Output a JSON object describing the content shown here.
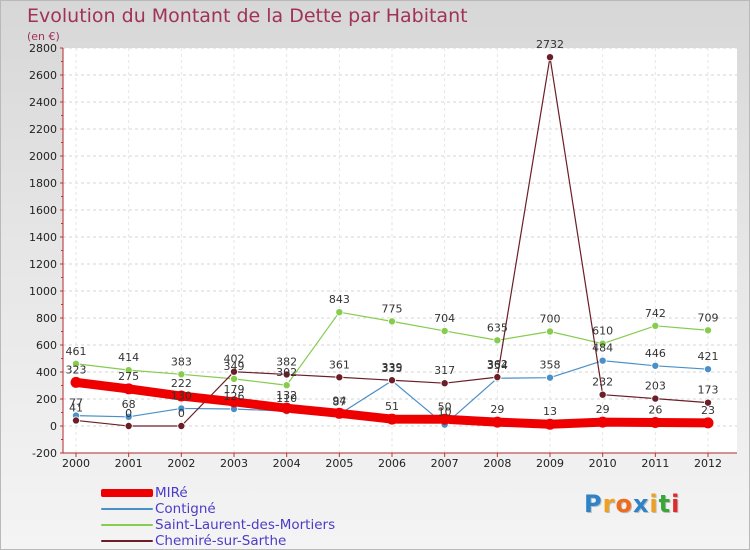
{
  "chart_data": {
    "type": "line",
    "title": "Evolution du Montant de la Dette par Habitant",
    "subtitle": "(en €)",
    "categories": [
      "2000",
      "2001",
      "2002",
      "2003",
      "2004",
      "2005",
      "2006",
      "2007",
      "2008",
      "2009",
      "2010",
      "2011",
      "2012"
    ],
    "ylim": [
      -200,
      2800
    ],
    "yticks": [
      -200,
      0,
      200,
      400,
      600,
      800,
      1000,
      1200,
      1400,
      1600,
      1800,
      2000,
      2200,
      2400,
      2600,
      2800
    ],
    "grid": true,
    "legend_position": "bottom-left",
    "series": [
      {
        "name": "MIRé",
        "color": "#ee0000",
        "values": [
          323,
          275,
          222,
          179,
          132,
          94,
          51,
          50,
          29,
          13,
          29,
          26,
          23
        ],
        "labels": [
          "323",
          "275",
          "222",
          "179",
          "132",
          "94",
          "51",
          "50",
          "29",
          "13",
          "29",
          "26",
          "23"
        ]
      },
      {
        "name": "Contigné",
        "color": "#4a90c8",
        "values": [
          77,
          68,
          130,
          126,
          110,
          87,
          335,
          10,
          354,
          358,
          484,
          446,
          421
        ],
        "labels": [
          "77",
          "68",
          "130",
          "126",
          "110",
          "87",
          "335",
          "10",
          "354",
          "358",
          "484",
          "446",
          "421"
        ]
      },
      {
        "name": "Saint-Laurent-des-Mortiers",
        "color": "#86cc4e",
        "values": [
          461,
          414,
          383,
          349,
          302,
          843,
          775,
          704,
          635,
          700,
          610,
          742,
          709
        ],
        "labels": [
          "461",
          "414",
          "383",
          "349",
          "302",
          "843",
          "775",
          "704",
          "635",
          "700",
          "610",
          "742",
          "709"
        ]
      },
      {
        "name": "Chemiré-sur-Sarthe",
        "color": "#6b1e28",
        "values": [
          41,
          0,
          0,
          402,
          382,
          361,
          339,
          317,
          362,
          2732,
          232,
          203,
          173
        ],
        "labels": [
          "41",
          "0",
          "0",
          "402",
          "382",
          "361",
          "339",
          "317",
          "362",
          "2732",
          "232",
          "203",
          "173"
        ]
      }
    ]
  },
  "logo": {
    "letters": [
      "P",
      "r",
      "o",
      "x",
      "i",
      "t",
      "i"
    ],
    "colors": [
      "#2d83c6",
      "#f0a020",
      "#f06a1c",
      "#2d83c6",
      "#f0a020",
      "#3aa63a",
      "#e02a2a"
    ]
  }
}
